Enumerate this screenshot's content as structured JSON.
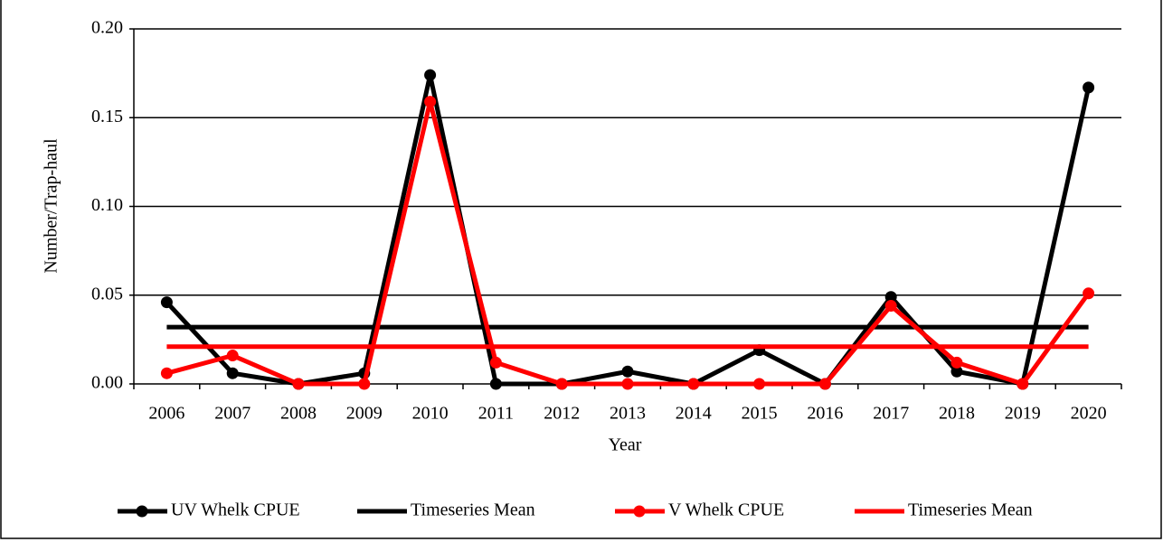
{
  "chart_data": {
    "type": "line",
    "x_label": "Year",
    "y_label": "Number/Trap-haul",
    "categories": [
      "2006",
      "2007",
      "2008",
      "2009",
      "2010",
      "2011",
      "2012",
      "2013",
      "2014",
      "2015",
      "2016",
      "2017",
      "2018",
      "2019",
      "2020"
    ],
    "series": [
      {
        "name": "UV Whelk CPUE",
        "color": "#000000",
        "marker": true,
        "values": [
          0.046,
          0.006,
          0,
          0.006,
          0.174,
          0,
          0,
          0.007,
          0,
          0.019,
          0,
          0.049,
          0.007,
          0,
          0.167
        ]
      },
      {
        "name": "Timeseries Mean",
        "color": "#000000",
        "marker": false,
        "values": [
          0.032,
          0.032,
          0.032,
          0.032,
          0.032,
          0.032,
          0.032,
          0.032,
          0.032,
          0.032,
          0.032,
          0.032,
          0.032,
          0.032,
          0.032
        ]
      },
      {
        "name": "V Whelk CPUE",
        "color": "#ff0000",
        "marker": true,
        "values": [
          0.006,
          0.016,
          0,
          0,
          0.159,
          0.012,
          0,
          0,
          0,
          0,
          0,
          0.044,
          0.012,
          0,
          0.051
        ]
      },
      {
        "name": "Timeseries Mean",
        "color": "#ff0000",
        "marker": false,
        "values": [
          0.021,
          0.021,
          0.021,
          0.021,
          0.021,
          0.021,
          0.021,
          0.021,
          0.021,
          0.021,
          0.021,
          0.021,
          0.021,
          0.021,
          0.021
        ]
      }
    ],
    "ylim": [
      0,
      0.2
    ],
    "yticks": [
      {
        "value": 0,
        "label": "0.00"
      },
      {
        "value": 0.05,
        "label": "0.05"
      },
      {
        "value": 0.1,
        "label": "0.10"
      },
      {
        "value": 0.15,
        "label": "0.15"
      },
      {
        "value": 0.2,
        "label": "0.20"
      }
    ],
    "grid": true,
    "legend": "bottom"
  }
}
